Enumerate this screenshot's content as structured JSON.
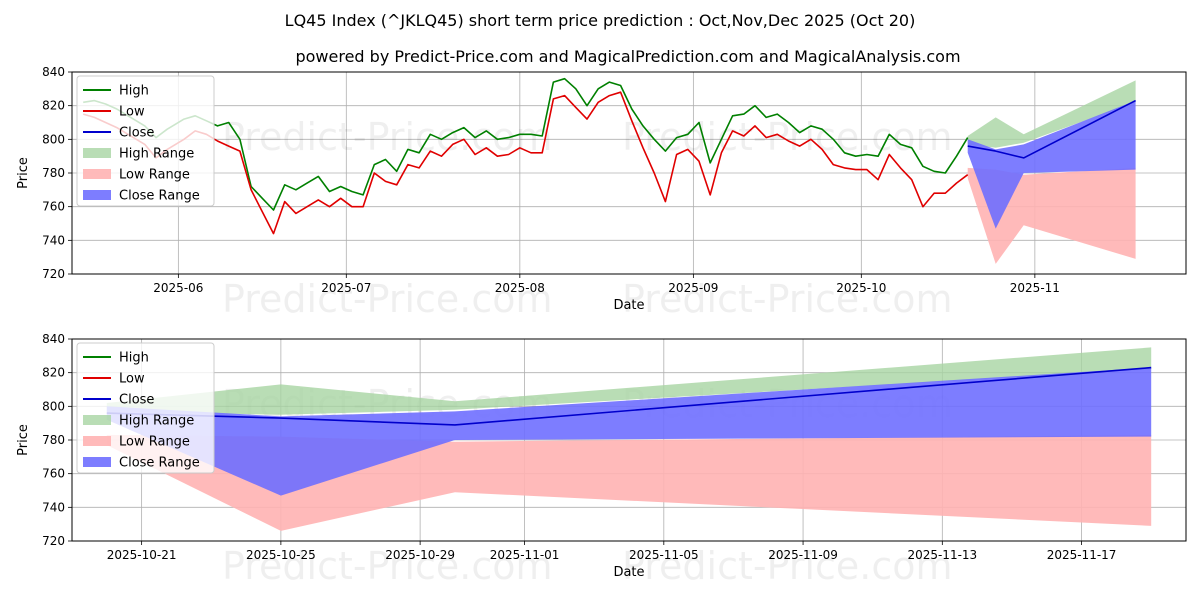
{
  "figure": {
    "title": "LQ45 Index (^JKLQ45) short term price prediction : Oct,Nov,Dec 2025 (Oct 20)",
    "subtitle": "powered by Predict-Price.com and MagicalPrediction.com and MagicalAnalysis.com",
    "watermark": "Predict-Price.com"
  },
  "colors": {
    "high": "#008000",
    "low": "#e00000",
    "close": "#0000cc",
    "high_range": "#a8d5a2",
    "low_range": "#ffb3b3",
    "close_range": "#6f6fff"
  },
  "chart_data": [
    {
      "type": "line",
      "title": "LQ45 Index history and prediction",
      "xlabel": "Date",
      "ylabel": "Price",
      "xlim": [
        "2025-05-13",
        "2025-11-28"
      ],
      "ylim": [
        720,
        840
      ],
      "yticks": [
        720,
        740,
        760,
        780,
        800,
        820,
        840
      ],
      "xticks": [
        "2025-06",
        "2025-07",
        "2025-08",
        "2025-09",
        "2025-10",
        "2025-11"
      ],
      "xtick_dates": [
        "2025-06-01",
        "2025-07-01",
        "2025-08-01",
        "2025-09-01",
        "2025-10-01",
        "2025-11-01"
      ],
      "legend": [
        "High",
        "Low",
        "Close",
        "High Range",
        "Low Range",
        "Close Range"
      ],
      "legend_position": "top-left",
      "history_dates": [
        "2025-05-15",
        "2025-05-17",
        "2025-05-19",
        "2025-05-21",
        "2025-05-23",
        "2025-05-26",
        "2025-05-28",
        "2025-05-30",
        "2025-06-02",
        "2025-06-04",
        "2025-06-06",
        "2025-06-08",
        "2025-06-10",
        "2025-06-12",
        "2025-06-14",
        "2025-06-16",
        "2025-06-18",
        "2025-06-20",
        "2025-06-22",
        "2025-06-24",
        "2025-06-26",
        "2025-06-28",
        "2025-06-30",
        "2025-07-02",
        "2025-07-04",
        "2025-07-06",
        "2025-07-08",
        "2025-07-10",
        "2025-07-12",
        "2025-07-14",
        "2025-07-16",
        "2025-07-18",
        "2025-07-20",
        "2025-07-22",
        "2025-07-24",
        "2025-07-26",
        "2025-07-28",
        "2025-07-30",
        "2025-08-01",
        "2025-08-03",
        "2025-08-05",
        "2025-08-07",
        "2025-08-09",
        "2025-08-11",
        "2025-08-13",
        "2025-08-15",
        "2025-08-17",
        "2025-08-19",
        "2025-08-21",
        "2025-08-23",
        "2025-08-25",
        "2025-08-27",
        "2025-08-29",
        "2025-08-31",
        "2025-09-02",
        "2025-09-04",
        "2025-09-06",
        "2025-09-08",
        "2025-09-10",
        "2025-09-12",
        "2025-09-14",
        "2025-09-16",
        "2025-09-18",
        "2025-09-20",
        "2025-09-22",
        "2025-09-24",
        "2025-09-26",
        "2025-09-28",
        "2025-09-30",
        "2025-10-02",
        "2025-10-04",
        "2025-10-06",
        "2025-10-08",
        "2025-10-10",
        "2025-10-12",
        "2025-10-14",
        "2025-10-16",
        "2025-10-18",
        "2025-10-20"
      ],
      "series": [
        {
          "name": "High",
          "values": [
            822,
            823,
            821,
            818,
            814,
            808,
            801,
            806,
            812,
            814,
            811,
            808,
            810,
            800,
            772,
            765,
            758,
            773,
            770,
            774,
            778,
            769,
            772,
            769,
            767,
            785,
            788,
            781,
            794,
            792,
            803,
            800,
            804,
            807,
            801,
            805,
            800,
            801,
            803,
            803,
            802,
            834,
            836,
            830,
            820,
            830,
            834,
            832,
            818,
            808,
            800,
            793,
            801,
            803,
            810,
            786,
            800,
            814,
            815,
            820,
            813,
            815,
            810,
            804,
            808,
            806,
            800,
            792,
            790,
            791,
            790,
            803,
            797,
            795,
            784,
            781,
            780,
            790,
            801
          ]
        },
        {
          "name": "Low",
          "values": [
            815,
            813,
            810,
            807,
            803,
            797,
            789,
            794,
            800,
            805,
            803,
            799,
            796,
            793,
            770,
            757,
            744,
            763,
            756,
            760,
            764,
            760,
            765,
            760,
            760,
            780,
            775,
            773,
            785,
            783,
            793,
            790,
            797,
            800,
            791,
            795,
            790,
            791,
            795,
            792,
            792,
            824,
            826,
            819,
            812,
            822,
            826,
            828,
            811,
            795,
            780,
            763,
            791,
            794,
            787,
            767,
            792,
            805,
            802,
            808,
            801,
            803,
            799,
            796,
            800,
            794,
            785,
            783,
            782,
            782,
            776,
            791,
            783,
            776,
            760,
            768,
            768,
            774,
            779
          ]
        },
        {
          "name": "Close",
          "values": [
            818,
            818,
            816,
            812,
            808,
            802,
            795,
            800,
            806,
            809,
            807,
            803,
            803,
            797,
            771,
            761,
            751,
            768,
            763,
            767,
            771,
            764,
            768,
            764,
            763,
            782,
            781,
            777,
            789,
            787,
            798,
            795,
            800,
            803,
            796,
            800,
            795,
            796,
            799,
            797,
            797,
            829,
            831,
            824,
            816,
            826,
            830,
            830,
            814,
            801,
            790,
            778,
            796,
            798,
            798,
            776,
            796,
            809,
            808,
            814,
            807,
            809,
            804,
            800,
            804,
            800,
            792,
            787,
            786,
            786,
            783,
            797,
            790,
            785,
            772,
            774,
            774,
            782,
            790
          ]
        }
      ]
    },
    {
      "type": "area",
      "title": "Prediction detail Oct 20 - Nov 19",
      "xlabel": "Date",
      "ylabel": "Price",
      "xlim": [
        "2025-10-19",
        "2025-11-20"
      ],
      "ylim": [
        720,
        840
      ],
      "yticks": [
        720,
        740,
        760,
        780,
        800,
        820,
        840
      ],
      "xticks": [
        "2025-10-21",
        "2025-10-25",
        "2025-10-29",
        "2025-11-01",
        "2025-11-05",
        "2025-11-09",
        "2025-11-13",
        "2025-11-17"
      ],
      "legend": [
        "High",
        "Low",
        "Close",
        "High Range",
        "Low Range",
        "Close Range"
      ],
      "legend_position": "top-left",
      "x": [
        "2025-10-20",
        "2025-10-25",
        "2025-10-30",
        "2025-11-19"
      ],
      "series": [
        {
          "name": "High",
          "values": [
            801,
            797,
            792,
            826
          ]
        },
        {
          "name": "Low",
          "values": [
            780,
            750,
            782,
            776
          ]
        },
        {
          "name": "Close",
          "values": [
            796,
            793,
            789,
            823
          ]
        },
        {
          "name": "High Range Upper",
          "values": [
            802,
            813,
            803,
            835
          ]
        },
        {
          "name": "High Range Lower",
          "values": [
            797,
            795,
            798,
            822
          ]
        },
        {
          "name": "Low Range Upper",
          "values": [
            783,
            782,
            779,
            783
          ]
        },
        {
          "name": "Low Range Lower",
          "values": [
            777,
            726,
            749,
            729
          ]
        },
        {
          "name": "Close Range Upper",
          "values": [
            800,
            794,
            797,
            823
          ]
        },
        {
          "name": "Close Range Lower",
          "values": [
            792,
            747,
            780,
            782
          ]
        }
      ]
    }
  ]
}
